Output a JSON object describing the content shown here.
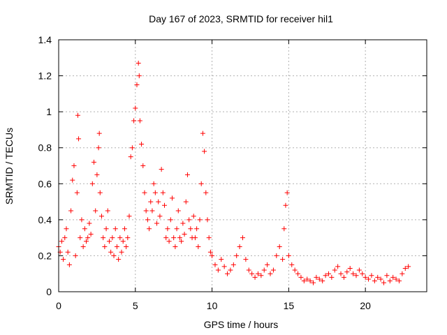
{
  "chart_data": {
    "type": "scatter",
    "title": "Day 167 of 2023, SRMTID for receiver hil1",
    "xlabel": "GPS time / hours",
    "ylabel": "SRMTID / TECUs",
    "xlim": [
      0,
      24
    ],
    "ylim": [
      0,
      1.4
    ],
    "xticks": [
      0,
      5,
      10,
      15,
      20
    ],
    "xtick_labels": [
      "0",
      "5",
      "10",
      "15",
      "20"
    ],
    "yticks": [
      0,
      0.2,
      0.4,
      0.6,
      0.8,
      1.0,
      1.2,
      1.4
    ],
    "ytick_labels": [
      "0",
      "0.2",
      "0.4",
      "0.6",
      "0.8",
      "1",
      "1.2",
      "1.4"
    ],
    "grid": true,
    "marker": "plus",
    "colors": {
      "series": "#ff0000",
      "grid": "#b0b0b0",
      "axis": "#000000"
    },
    "series": [
      {
        "name": "SRMTID",
        "x": [
          0.0,
          0.1,
          0.2,
          0.3,
          0.4,
          0.5,
          0.6,
          0.7,
          0.8,
          0.9,
          1.0,
          1.1,
          1.2,
          1.25,
          1.3,
          1.4,
          1.5,
          1.6,
          1.7,
          1.8,
          1.9,
          2.0,
          2.1,
          2.2,
          2.3,
          2.4,
          2.5,
          2.6,
          2.65,
          2.7,
          2.8,
          2.9,
          3.0,
          3.1,
          3.2,
          3.3,
          3.4,
          3.5,
          3.6,
          3.7,
          3.8,
          3.9,
          4.0,
          4.1,
          4.2,
          4.3,
          4.4,
          4.5,
          4.6,
          4.7,
          4.8,
          4.9,
          5.0,
          5.1,
          5.2,
          5.25,
          5.3,
          5.4,
          5.5,
          5.6,
          5.7,
          5.8,
          5.9,
          6.0,
          6.1,
          6.2,
          6.3,
          6.4,
          6.5,
          6.6,
          6.7,
          6.8,
          6.9,
          7.0,
          7.1,
          7.2,
          7.3,
          7.4,
          7.5,
          7.6,
          7.7,
          7.8,
          7.9,
          8.0,
          8.1,
          8.2,
          8.3,
          8.4,
          8.5,
          8.6,
          8.7,
          8.8,
          8.9,
          9.0,
          9.1,
          9.2,
          9.3,
          9.4,
          9.5,
          9.6,
          9.7,
          9.8,
          9.9,
          10.0,
          10.2,
          10.4,
          10.6,
          10.8,
          11.0,
          11.2,
          11.4,
          11.6,
          11.8,
          12.0,
          12.2,
          12.4,
          12.6,
          12.8,
          13.0,
          13.2,
          13.4,
          13.6,
          13.8,
          14.0,
          14.2,
          14.4,
          14.6,
          14.7,
          14.8,
          14.9,
          15.0,
          15.2,
          15.4,
          15.6,
          15.8,
          16.0,
          16.2,
          16.4,
          16.6,
          16.8,
          17.0,
          17.2,
          17.4,
          17.6,
          17.8,
          18.0,
          18.2,
          18.4,
          18.6,
          18.8,
          19.0,
          19.2,
          19.4,
          19.6,
          19.8,
          20.0,
          20.2,
          20.4,
          20.6,
          20.8,
          21.0,
          21.2,
          21.4,
          21.6,
          21.8,
          22.0,
          22.2,
          22.4,
          22.6,
          22.8
        ],
        "y": [
          0.25,
          0.22,
          0.28,
          0.18,
          0.3,
          0.35,
          0.22,
          0.15,
          0.45,
          0.62,
          0.7,
          0.2,
          0.55,
          0.98,
          0.85,
          0.3,
          0.4,
          0.25,
          0.35,
          0.28,
          0.3,
          0.38,
          0.32,
          0.6,
          0.72,
          0.45,
          0.65,
          0.8,
          0.88,
          0.55,
          0.42,
          0.3,
          0.25,
          0.35,
          0.45,
          0.28,
          0.22,
          0.3,
          0.2,
          0.35,
          0.25,
          0.18,
          0.3,
          0.22,
          0.28,
          0.35,
          0.25,
          0.3,
          0.42,
          0.75,
          0.8,
          0.95,
          1.02,
          1.15,
          1.27,
          1.2,
          0.95,
          0.82,
          0.7,
          0.55,
          0.45,
          0.4,
          0.35,
          0.5,
          0.45,
          0.6,
          0.55,
          0.38,
          0.5,
          0.42,
          0.68,
          0.55,
          0.48,
          0.3,
          0.35,
          0.28,
          0.4,
          0.52,
          0.3,
          0.25,
          0.35,
          0.45,
          0.3,
          0.28,
          0.38,
          0.32,
          0.5,
          0.65,
          0.4,
          0.35,
          0.3,
          0.42,
          0.3,
          0.35,
          0.25,
          0.4,
          0.6,
          0.88,
          0.78,
          0.55,
          0.4,
          0.3,
          0.22,
          0.2,
          0.15,
          0.12,
          0.18,
          0.14,
          0.1,
          0.12,
          0.15,
          0.2,
          0.25,
          0.3,
          0.18,
          0.12,
          0.1,
          0.08,
          0.1,
          0.09,
          0.12,
          0.15,
          0.1,
          0.12,
          0.2,
          0.25,
          0.18,
          0.35,
          0.48,
          0.55,
          0.2,
          0.15,
          0.12,
          0.1,
          0.08,
          0.06,
          0.07,
          0.06,
          0.05,
          0.08,
          0.07,
          0.06,
          0.09,
          0.1,
          0.08,
          0.12,
          0.14,
          0.1,
          0.08,
          0.11,
          0.13,
          0.1,
          0.09,
          0.12,
          0.1,
          0.08,
          0.07,
          0.09,
          0.06,
          0.08,
          0.07,
          0.05,
          0.09,
          0.06,
          0.08,
          0.07,
          0.06,
          0.1,
          0.13,
          0.14
        ]
      }
    ]
  }
}
